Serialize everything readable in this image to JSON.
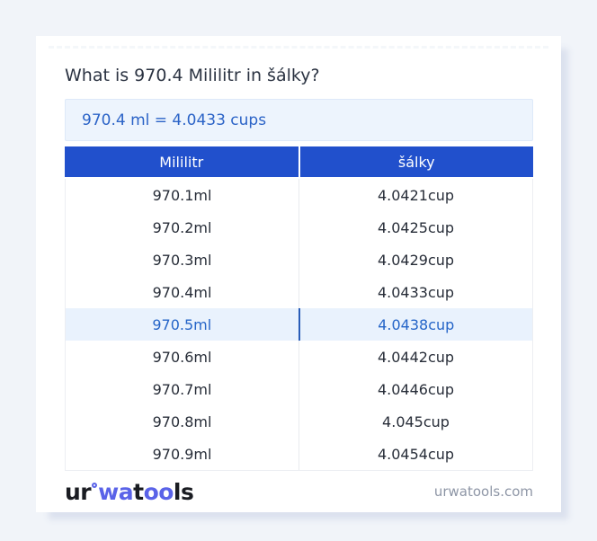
{
  "page": {
    "title": "What is 970.4 Mililitr in šálky?",
    "result": "970.4 ml = 4.0433 cups"
  },
  "table": {
    "columns": [
      "Mililitr",
      "šálky"
    ],
    "rows": [
      {
        "ml": "970.1ml",
        "cup": "4.0421cup"
      },
      {
        "ml": "970.2ml",
        "cup": "4.0425cup"
      },
      {
        "ml": "970.3ml",
        "cup": "4.0429cup"
      },
      {
        "ml": "970.4ml",
        "cup": "4.0433cup"
      },
      {
        "ml": "970.5ml",
        "cup": "4.0438cup"
      },
      {
        "ml": "970.6ml",
        "cup": "4.0442cup"
      },
      {
        "ml": "970.7ml",
        "cup": "4.0446cup"
      },
      {
        "ml": "970.8ml",
        "cup": "4.045cup"
      },
      {
        "ml": "970.9ml",
        "cup": "4.0454cup"
      }
    ],
    "highlight_index": 4
  },
  "footer": {
    "logo": {
      "part1": "ur",
      "part2": "wa",
      "part3": "t",
      "part4": "oo",
      "part5": "ls"
    },
    "domain": "urwatools.com"
  },
  "colors": {
    "header_bg": "#2150cc",
    "result_bg": "#edf4fd",
    "result_text": "#2b63c7",
    "highlight_bg": "#e9f2fd",
    "highlight_text": "#2565c8",
    "highlight_divider": "#2a5db8",
    "logo_blue": "#5a63e8",
    "page_bg": "#f1f4f9"
  }
}
